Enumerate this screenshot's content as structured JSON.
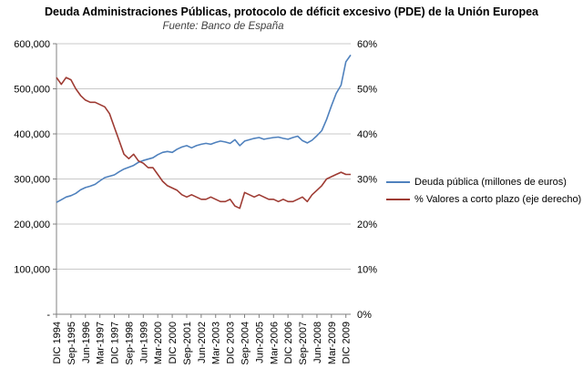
{
  "title": "Deuda Administraciones Públicas, protocolo de déficit excesivo (PDE) de la Unión Europea",
  "subtitle": "Fuente: Banco de España",
  "legend": [
    {
      "label": "Deuda pública (millones de euros)"
    },
    {
      "label": "% Valores a corto plazo (eje derecho)"
    }
  ],
  "chart_data": {
    "type": "line",
    "grid_on": true,
    "grid_color": "#c9c9c9",
    "axis_color": "#808080",
    "legend_position": "right",
    "x": [
      "dic-1994",
      "mar-1995",
      "jun-1995",
      "sep-1995",
      "dic-1995",
      "mar-1996",
      "jun-1996",
      "sep-1996",
      "dic-1996",
      "mar-1997",
      "jun-1997",
      "sep-1997",
      "dic-1997",
      "mar-1998",
      "jun-1998",
      "sep-1998",
      "dic-1998",
      "mar-1999",
      "jun-1999",
      "sep-1999",
      "dic-1999",
      "mar-2000",
      "jun-2000",
      "sep-2000",
      "dic-2000",
      "mar-2001",
      "jun-2001",
      "sep-2001",
      "dic-2001",
      "mar-2002",
      "jun-2002",
      "sep-2002",
      "dic-2002",
      "mar-2003",
      "jun-2003",
      "sep-2003",
      "dic-2003",
      "mar-2004",
      "jun-2004",
      "sep-2004",
      "dic-2004",
      "mar-2005",
      "jun-2005",
      "sep-2005",
      "dic-2005",
      "mar-2006",
      "jun-2006",
      "sep-2006",
      "dic-2006",
      "mar-2007",
      "jun-2007",
      "sep-2007",
      "dic-2007",
      "mar-2008",
      "jun-2008",
      "sep-2008",
      "dic-2008",
      "mar-2009",
      "jun-2009",
      "sep-2009",
      "dic-2009",
      "mar-2010"
    ],
    "x_tick_labels": [
      "DIC 1994",
      "Sep-1995",
      "Jun-1996",
      "Mar-1997",
      "DIC 1997",
      "Sep-1998",
      "Jun-1999",
      "Mar-2000",
      "DIC 2000",
      "Sep-2001",
      "Jun-2002",
      "Mar-2003",
      "DIC 2003",
      "Sep-2004",
      "Jun-2005",
      "Mar-2006",
      "DIC 2006",
      "Sep-2007",
      "Jun-2008",
      "Mar-2009",
      "DIC 2009"
    ],
    "x_tick_every": 3,
    "left_axis": {
      "min": 0,
      "max": 600000,
      "step": 100000,
      "tick_labels": [
        "-",
        "100,000",
        "200,000",
        "300,000",
        "400,000",
        "500,000",
        "600,000"
      ]
    },
    "right_axis": {
      "min": 0,
      "max": 60,
      "step": 10,
      "tick_labels": [
        "0%",
        "10%",
        "20%",
        "30%",
        "40%",
        "50%",
        "60%"
      ]
    },
    "series": [
      {
        "name": "Deuda pública (millones de euros)",
        "axis": "left",
        "color": "#4f81bd",
        "values": [
          248000,
          254000,
          260000,
          263000,
          268000,
          276000,
          281000,
          284000,
          288000,
          296000,
          303000,
          306000,
          309000,
          316000,
          322000,
          326000,
          330000,
          337000,
          341000,
          344000,
          347000,
          354000,
          359000,
          361000,
          359000,
          366000,
          371000,
          374000,
          369000,
          374000,
          377000,
          379000,
          377000,
          381000,
          384000,
          382000,
          379000,
          387000,
          374000,
          384000,
          387000,
          390000,
          392000,
          388000,
          390000,
          392000,
          393000,
          390000,
          388000,
          392000,
          395000,
          385000,
          380000,
          386000,
          396000,
          407000,
          432000,
          462000,
          490000,
          508000,
          560000,
          575000
        ]
      },
      {
        "name": "% Valores a corto plazo (eje derecho)",
        "axis": "right",
        "color": "#9e3b33",
        "values": [
          52.5,
          51,
          52.5,
          52,
          50,
          48.5,
          47.5,
          47,
          47,
          46.5,
          46,
          44.5,
          41.5,
          38.5,
          35.5,
          34.5,
          35.5,
          34,
          33.5,
          32.5,
          32.5,
          31,
          29.5,
          28.5,
          28,
          27.5,
          26.5,
          26,
          26.5,
          26,
          25.5,
          25.5,
          26,
          25.5,
          25,
          25,
          25.5,
          24,
          23.5,
          27,
          26.5,
          26,
          26.5,
          26,
          25.5,
          25.5,
          25,
          25.5,
          25,
          25,
          25.5,
          26,
          25,
          26.5,
          27.5,
          28.5,
          30,
          30.5,
          31,
          31.5,
          31,
          31
        ]
      }
    ]
  }
}
